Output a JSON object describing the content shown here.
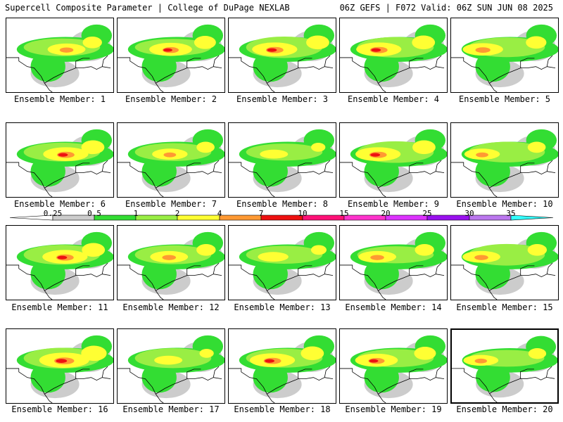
{
  "header": {
    "left_title": "Supercell Composite Parameter | College of DuPage NEXLAB",
    "right_title": "06Z GEFS | F072 Valid: 06Z SUN JUN 08 2025"
  },
  "colorbar": {
    "labels": [
      "0.25",
      "0.5",
      "1",
      "2",
      "4",
      "7",
      "10",
      "15",
      "20",
      "25",
      "30",
      "35"
    ],
    "colors": [
      "#cccccc",
      "#33dd33",
      "#99ee44",
      "#ffff33",
      "#ff9933",
      "#ee1111",
      "#ff1177",
      "#ff33cc",
      "#dd33ff",
      "#9911ee",
      "#bb77ee",
      "#33ffff"
    ]
  },
  "members": [
    {
      "label": "Ensemble Member: 1",
      "level": 0.55
    },
    {
      "label": "Ensemble Member: 2",
      "level": 0.65
    },
    {
      "label": "Ensemble Member: 3",
      "level": 0.7
    },
    {
      "label": "Ensemble Member: 4",
      "level": 0.7
    },
    {
      "label": "Ensemble Member: 5",
      "level": 0.6
    },
    {
      "label": "Ensemble Member: 6",
      "level": 0.7
    },
    {
      "label": "Ensemble Member: 7",
      "level": 0.5
    },
    {
      "label": "Ensemble Member: 8",
      "level": 0.35
    },
    {
      "label": "Ensemble Member: 9",
      "level": 0.7
    },
    {
      "label": "Ensemble Member: 10",
      "level": 0.5
    },
    {
      "label": "Ensemble Member: 11",
      "level": 0.7
    },
    {
      "label": "Ensemble Member: 12",
      "level": 0.55
    },
    {
      "label": "Ensemble Member: 13",
      "level": 0.4
    },
    {
      "label": "Ensemble Member: 14",
      "level": 0.55
    },
    {
      "label": "Ensemble Member: 15",
      "level": 0.55
    },
    {
      "label": "Ensemble Member: 16",
      "level": 0.8
    },
    {
      "label": "Ensemble Member: 17",
      "level": 0.35
    },
    {
      "label": "Ensemble Member: 18",
      "level": 0.7
    },
    {
      "label": "Ensemble Member: 19",
      "level": 0.65
    },
    {
      "label": "Ensemble Member: 20",
      "level": 0.5
    }
  ],
  "selected_member": 20
}
